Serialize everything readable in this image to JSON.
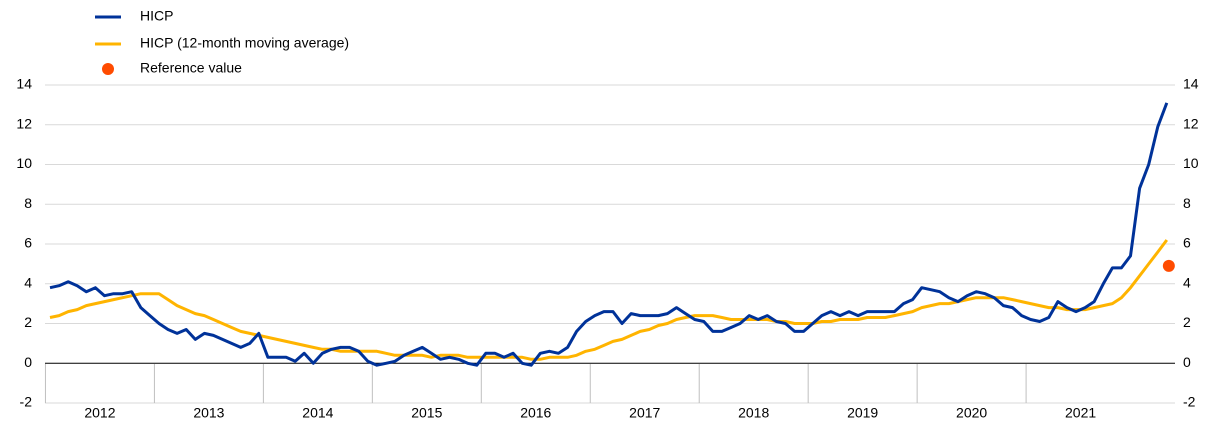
{
  "chart_data": {
    "type": "line",
    "year_labels": [
      "2012",
      "2013",
      "2014",
      "2015",
      "2016",
      "2017",
      "2018",
      "2019",
      "2020",
      "2021"
    ],
    "series": [
      {
        "name": "HICP",
        "color": "#003299",
        "values": [
          3.8,
          3.9,
          4.1,
          3.9,
          3.6,
          3.8,
          3.4,
          3.5,
          3.5,
          3.6,
          2.8,
          2.4,
          2.0,
          1.7,
          1.5,
          1.7,
          1.2,
          1.5,
          1.4,
          1.2,
          1.0,
          0.8,
          1.0,
          1.5,
          0.3,
          0.3,
          0.3,
          0.1,
          0.5,
          0.0,
          0.5,
          0.7,
          0.8,
          0.8,
          0.6,
          0.1,
          -0.1,
          0.0,
          0.1,
          0.4,
          0.6,
          0.8,
          0.5,
          0.2,
          0.3,
          0.2,
          0.0,
          -0.1,
          0.5,
          0.5,
          0.3,
          0.5,
          0.0,
          -0.1,
          0.5,
          0.6,
          0.5,
          0.8,
          1.6,
          2.1,
          2.4,
          2.6,
          2.6,
          2.0,
          2.5,
          2.4,
          2.4,
          2.4,
          2.5,
          2.8,
          2.5,
          2.2,
          2.1,
          1.6,
          1.6,
          1.8,
          2.0,
          2.4,
          2.2,
          2.4,
          2.1,
          2.0,
          1.6,
          1.6,
          2.0,
          2.4,
          2.6,
          2.4,
          2.6,
          2.4,
          2.6,
          2.6,
          2.6,
          2.6,
          3.0,
          3.2,
          3.8,
          3.7,
          3.6,
          3.3,
          3.1,
          3.4,
          3.6,
          3.5,
          3.3,
          2.9,
          2.8,
          2.4,
          2.2,
          2.1,
          2.3,
          3.1,
          2.8,
          2.6,
          2.8,
          3.1,
          4.0,
          4.8,
          4.8,
          5.4,
          8.8,
          10.0,
          11.9,
          13.1
        ]
      },
      {
        "name": "HICP (12-month moving average)",
        "color": "#FFB400",
        "values": [
          2.3,
          2.4,
          2.6,
          2.7,
          2.9,
          3.0,
          3.1,
          3.2,
          3.3,
          3.4,
          3.5,
          3.5,
          3.5,
          3.2,
          2.9,
          2.7,
          2.5,
          2.4,
          2.2,
          2.0,
          1.8,
          1.6,
          1.5,
          1.4,
          1.3,
          1.2,
          1.1,
          1.0,
          0.9,
          0.8,
          0.7,
          0.7,
          0.6,
          0.6,
          0.6,
          0.6,
          0.6,
          0.5,
          0.4,
          0.4,
          0.4,
          0.4,
          0.3,
          0.4,
          0.4,
          0.4,
          0.3,
          0.3,
          0.3,
          0.3,
          0.3,
          0.3,
          0.3,
          0.2,
          0.2,
          0.3,
          0.3,
          0.3,
          0.4,
          0.6,
          0.7,
          0.9,
          1.1,
          1.2,
          1.4,
          1.6,
          1.7,
          1.9,
          2.0,
          2.2,
          2.3,
          2.4,
          2.4,
          2.4,
          2.3,
          2.2,
          2.2,
          2.2,
          2.2,
          2.2,
          2.1,
          2.1,
          2.0,
          2.0,
          2.0,
          2.1,
          2.1,
          2.2,
          2.2,
          2.2,
          2.3,
          2.3,
          2.3,
          2.4,
          2.5,
          2.6,
          2.8,
          2.9,
          3.0,
          3.0,
          3.1,
          3.2,
          3.3,
          3.3,
          3.3,
          3.3,
          3.2,
          3.1,
          3.0,
          2.9,
          2.8,
          2.8,
          2.7,
          2.7,
          2.7,
          2.8,
          2.9,
          3.0,
          3.3,
          3.8,
          4.4,
          5.0,
          5.6,
          6.2
        ]
      }
    ],
    "reference": {
      "name": "Reference value",
      "color": "#FF4B00",
      "value": 4.9
    },
    "ylim": [
      -2,
      14
    ],
    "yticks": [
      -2,
      0,
      2,
      4,
      6,
      8,
      10,
      12,
      14
    ],
    "y2lim": [
      -2,
      14
    ],
    "y2ticks": [
      -2,
      0,
      2,
      4,
      6,
      8,
      10,
      12,
      14
    ],
    "grid": true
  }
}
